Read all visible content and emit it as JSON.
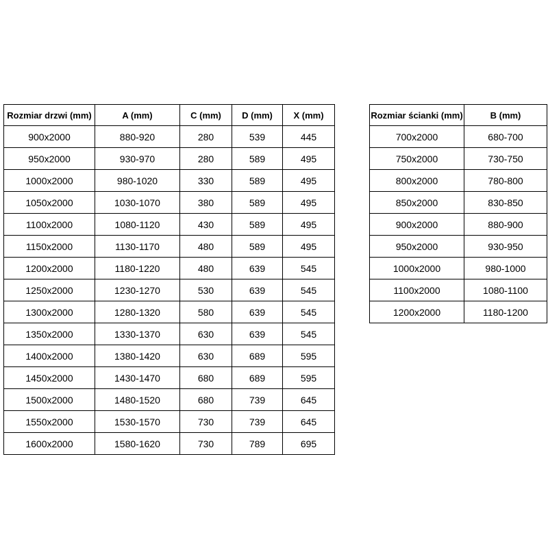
{
  "colors": {
    "background": "#ffffff",
    "border": "#000000",
    "text": "#000000"
  },
  "tables": {
    "doors": {
      "title": "door-sizes",
      "columns": [
        "Rozmiar drzwi (mm)",
        "A (mm)",
        "C (mm)",
        "D (mm)",
        "X (mm)"
      ],
      "rows": [
        [
          "900x2000",
          "880-920",
          "280",
          "539",
          "445"
        ],
        [
          "950x2000",
          "930-970",
          "280",
          "589",
          "495"
        ],
        [
          "1000x2000",
          "980-1020",
          "330",
          "589",
          "495"
        ],
        [
          "1050x2000",
          "1030-1070",
          "380",
          "589",
          "495"
        ],
        [
          "1100x2000",
          "1080-1120",
          "430",
          "589",
          "495"
        ],
        [
          "1150x2000",
          "1130-1170",
          "480",
          "589",
          "495"
        ],
        [
          "1200x2000",
          "1180-1220",
          "480",
          "639",
          "545"
        ],
        [
          "1250x2000",
          "1230-1270",
          "530",
          "639",
          "545"
        ],
        [
          "1300x2000",
          "1280-1320",
          "580",
          "639",
          "545"
        ],
        [
          "1350x2000",
          "1330-1370",
          "630",
          "639",
          "545"
        ],
        [
          "1400x2000",
          "1380-1420",
          "630",
          "689",
          "595"
        ],
        [
          "1450x2000",
          "1430-1470",
          "680",
          "689",
          "595"
        ],
        [
          "1500x2000",
          "1480-1520",
          "680",
          "739",
          "645"
        ],
        [
          "1550x2000",
          "1530-1570",
          "730",
          "739",
          "645"
        ],
        [
          "1600x2000",
          "1580-1620",
          "730",
          "789",
          "695"
        ]
      ]
    },
    "walls": {
      "title": "wall-panel-sizes",
      "columns": [
        "Rozmiar ścianki (mm)",
        "B (mm)"
      ],
      "rows": [
        [
          "700x2000",
          "680-700"
        ],
        [
          "750x2000",
          "730-750"
        ],
        [
          "800x2000",
          "780-800"
        ],
        [
          "850x2000",
          "830-850"
        ],
        [
          "900x2000",
          "880-900"
        ],
        [
          "950x2000",
          "930-950"
        ],
        [
          "1000x2000",
          "980-1000"
        ],
        [
          "1100x2000",
          "1080-1100"
        ],
        [
          "1200x2000",
          "1180-1200"
        ]
      ]
    }
  }
}
